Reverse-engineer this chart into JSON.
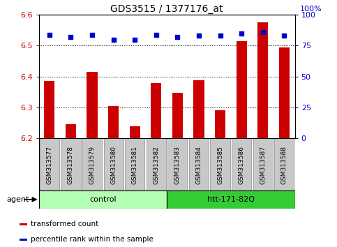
{
  "title": "GDS3515 / 1377176_at",
  "samples": [
    "GSM313577",
    "GSM313578",
    "GSM313579",
    "GSM313580",
    "GSM313581",
    "GSM313582",
    "GSM313583",
    "GSM313584",
    "GSM313585",
    "GSM313586",
    "GSM313587",
    "GSM313588"
  ],
  "bar_values": [
    6.385,
    6.245,
    6.415,
    6.305,
    6.24,
    6.38,
    6.348,
    6.388,
    6.292,
    6.515,
    6.575,
    6.495
  ],
  "dot_values": [
    84,
    82,
    84,
    80,
    80,
    84,
    82,
    83,
    83,
    85,
    86,
    83
  ],
  "bar_color": "#cc0000",
  "dot_color": "#0000cc",
  "ylim_left": [
    6.2,
    6.6
  ],
  "ylim_right": [
    0,
    100
  ],
  "yticks_left": [
    6.2,
    6.3,
    6.4,
    6.5,
    6.6
  ],
  "yticks_right": [
    0,
    25,
    50,
    75,
    100
  ],
  "grid_values": [
    6.3,
    6.4,
    6.5
  ],
  "groups": [
    {
      "label": "control",
      "start": 0,
      "end": 6,
      "color": "#b3ffb3"
    },
    {
      "label": "htt-171-82Q",
      "start": 6,
      "end": 12,
      "color": "#33cc33"
    }
  ],
  "agent_label": "agent",
  "legend_items": [
    {
      "color": "#cc0000",
      "label": "transformed count"
    },
    {
      "color": "#0000cc",
      "label": "percentile rank within the sample"
    }
  ],
  "tick_label_color_left": "#cc0000",
  "tick_label_color_right": "#0000cc",
  "bar_bottom": 6.2,
  "xtick_bg_color": "#c8c8c8",
  "xtick_border_color": "#888888"
}
